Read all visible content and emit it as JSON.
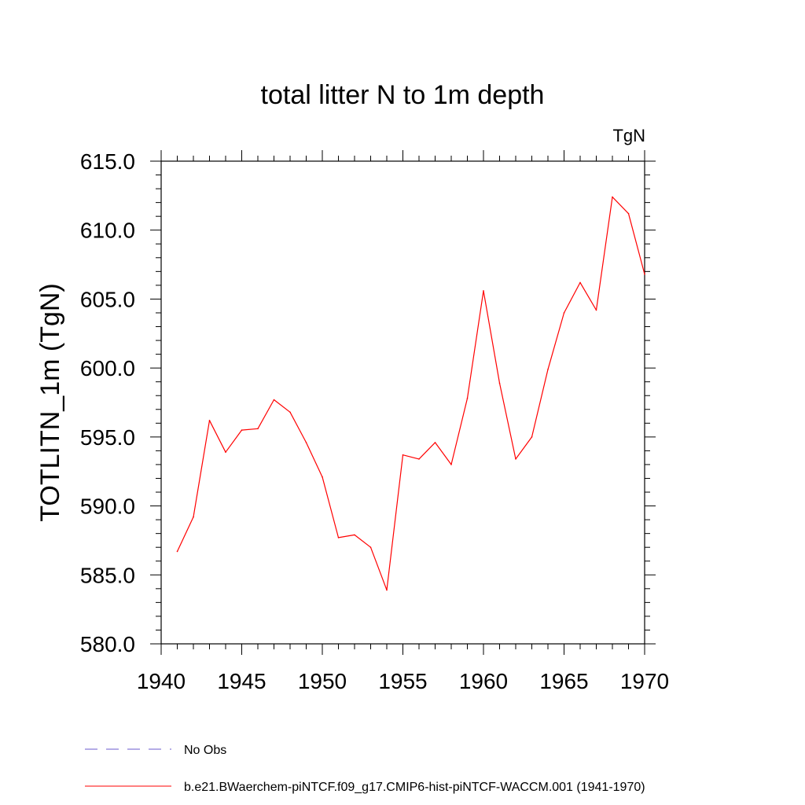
{
  "chart_data": {
    "type": "line",
    "title": "total litter N to 1m depth",
    "units_label": "TgN",
    "ylabel": "TOTLITN_1m  (TgN)",
    "xlabel": "",
    "xlim": [
      1940,
      1970
    ],
    "ylim": [
      580.0,
      615.0
    ],
    "x_ticks": [
      1940,
      1945,
      1950,
      1955,
      1960,
      1965,
      1970
    ],
    "y_ticks": [
      "580.0",
      "585.0",
      "590.0",
      "595.0",
      "600.0",
      "605.0",
      "610.0",
      "615.0"
    ],
    "grid": false,
    "legend_position": "bottom-left",
    "series": [
      {
        "name": "b.e21.BWaerchem-piNTCF.f09_g17.CMIP6-hist-piNTCF-WACCM.001 (1941-1970)",
        "color": "#ff0000",
        "style": "solid",
        "x": [
          1941,
          1942,
          1943,
          1944,
          1945,
          1946,
          1947,
          1948,
          1949,
          1950,
          1951,
          1952,
          1953,
          1954,
          1955,
          1956,
          1957,
          1958,
          1959,
          1960,
          1961,
          1962,
          1963,
          1964,
          1965,
          1966,
          1967,
          1968,
          1969,
          1970
        ],
        "values": [
          586.7,
          589.2,
          596.2,
          593.9,
          595.5,
          595.6,
          597.7,
          596.8,
          594.6,
          592.1,
          587.7,
          587.9,
          587.0,
          583.9,
          593.7,
          593.4,
          594.6,
          593.0,
          597.8,
          605.6,
          598.9,
          593.4,
          595.0,
          599.9,
          604.0,
          606.2,
          604.2,
          612.4,
          611.2,
          606.8
        ]
      },
      {
        "name": "No Obs",
        "color": "#6a5acd",
        "style": "dashed",
        "x": [],
        "values": []
      }
    ]
  }
}
